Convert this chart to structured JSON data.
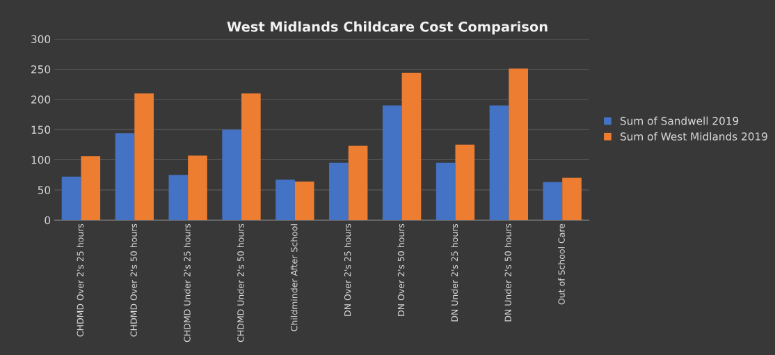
{
  "chart_data": {
    "type": "bar",
    "title": "West Midlands Childcare Cost Comparison",
    "categories": [
      "CHDMD Over 2's 25 hours",
      "CHDMD Over 2's 50 hours",
      "CHDMD Under 2's 25 hours",
      "CHDMD Under 2's 50 hours",
      "Childminder After School",
      "DN Over 2's 25 hours",
      "DN Over 2's 50 hours",
      "DN Under 2's 25 hours",
      "DN Under 2's 50 hours",
      "Out of School Care"
    ],
    "series": [
      {
        "name": "Sum of Sandwell 2019",
        "color": "#4472c4",
        "values": [
          72,
          144,
          75,
          150,
          67,
          95,
          190,
          95,
          190,
          63
        ]
      },
      {
        "name": "Sum of West Midlands 2019",
        "color": "#ed7d31",
        "values": [
          106,
          210,
          107,
          210,
          64,
          123,
          244,
          125,
          251,
          70
        ]
      }
    ],
    "ylim": [
      0,
      300
    ],
    "yticks": [
      0,
      50,
      100,
      150,
      200,
      250,
      300
    ],
    "grid": "y",
    "legend": "right"
  }
}
